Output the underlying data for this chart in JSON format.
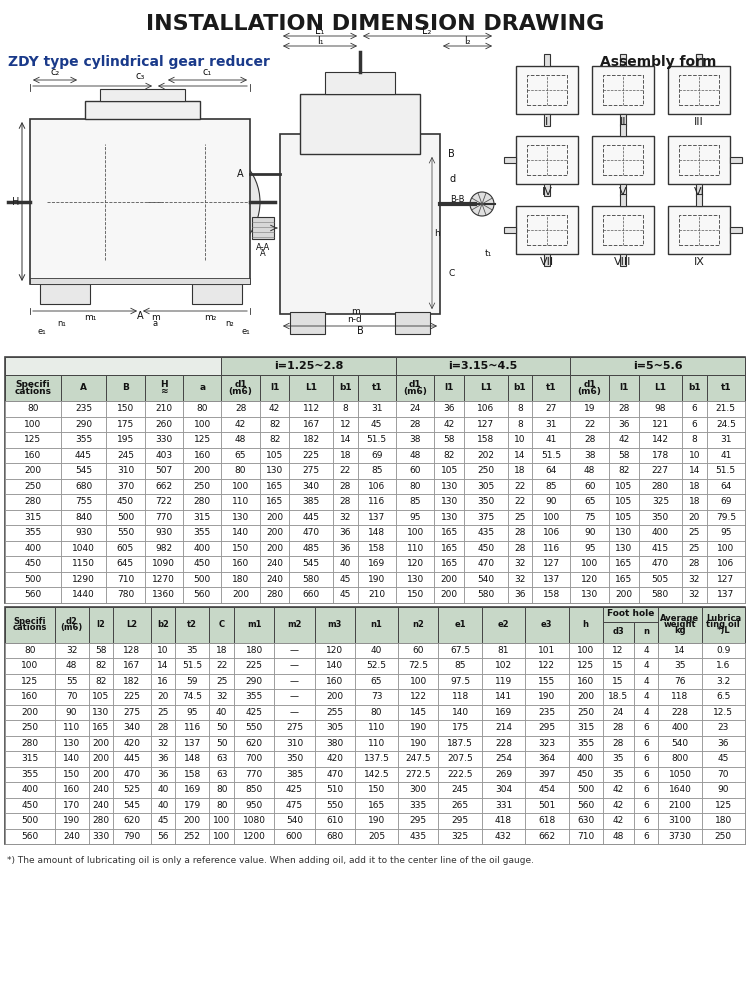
{
  "title": "INSTALLATION DIMENSION DRAWING",
  "subtitle": "ZDY type cylindrical gear reducer",
  "assembly_form_title": "Assembly form",
  "bg_color": "#ffffff",
  "subtitle_color": "#1a3a8a",
  "table_header_bg": "#c8d8c8",
  "table_border": "#555555",
  "table1_cols": [
    "Specifi\ncations",
    "A",
    "B",
    "H\n≈",
    "a",
    "d1\n(m6)",
    "l1",
    "L1",
    "b1",
    "t1",
    "d1\n(m6)",
    "l1",
    "L1",
    "b1",
    "t1",
    "d1\n(m6)",
    "l1",
    "L1",
    "b1",
    "t1"
  ],
  "table1_group_labels": [
    "",
    "i=1.25~2.8",
    "i=3.15~4.5",
    "i=5~5.6"
  ],
  "table1_group_spans": [
    [
      0,
      5
    ],
    [
      5,
      5
    ],
    [
      10,
      5
    ],
    [
      15,
      5
    ]
  ],
  "table1_data": [
    [
      "80",
      "235",
      "150",
      "210",
      "80",
      "28",
      "42",
      "112",
      "8",
      "31",
      "24",
      "36",
      "106",
      "8",
      "27",
      "19",
      "28",
      "98",
      "6",
      "21.5"
    ],
    [
      "100",
      "290",
      "175",
      "260",
      "100",
      "42",
      "82",
      "167",
      "12",
      "45",
      "28",
      "42",
      "127",
      "8",
      "31",
      "22",
      "36",
      "121",
      "6",
      "24.5"
    ],
    [
      "125",
      "355",
      "195",
      "330",
      "125",
      "48",
      "82",
      "182",
      "14",
      "51.5",
      "38",
      "58",
      "158",
      "10",
      "41",
      "28",
      "42",
      "142",
      "8",
      "31"
    ],
    [
      "160",
      "445",
      "245",
      "403",
      "160",
      "65",
      "105",
      "225",
      "18",
      "69",
      "48",
      "82",
      "202",
      "14",
      "51.5",
      "38",
      "58",
      "178",
      "10",
      "41"
    ],
    [
      "200",
      "545",
      "310",
      "507",
      "200",
      "80",
      "130",
      "275",
      "22",
      "85",
      "60",
      "105",
      "250",
      "18",
      "64",
      "48",
      "82",
      "227",
      "14",
      "51.5"
    ],
    [
      "250",
      "680",
      "370",
      "662",
      "250",
      "100",
      "165",
      "340",
      "28",
      "106",
      "80",
      "130",
      "305",
      "22",
      "85",
      "60",
      "105",
      "280",
      "18",
      "64"
    ],
    [
      "280",
      "755",
      "450",
      "722",
      "280",
      "110",
      "165",
      "385",
      "28",
      "116",
      "85",
      "130",
      "350",
      "22",
      "90",
      "65",
      "105",
      "325",
      "18",
      "69"
    ],
    [
      "315",
      "840",
      "500",
      "770",
      "315",
      "130",
      "200",
      "445",
      "32",
      "137",
      "95",
      "130",
      "375",
      "25",
      "100",
      "75",
      "105",
      "350",
      "20",
      "79.5"
    ],
    [
      "355",
      "930",
      "550",
      "930",
      "355",
      "140",
      "200",
      "470",
      "36",
      "148",
      "100",
      "165",
      "435",
      "28",
      "106",
      "90",
      "130",
      "400",
      "25",
      "95"
    ],
    [
      "400",
      "1040",
      "605",
      "982",
      "400",
      "150",
      "200",
      "485",
      "36",
      "158",
      "110",
      "165",
      "450",
      "28",
      "116",
      "95",
      "130",
      "415",
      "25",
      "100"
    ],
    [
      "450",
      "1150",
      "645",
      "1090",
      "450",
      "160",
      "240",
      "545",
      "40",
      "169",
      "120",
      "165",
      "470",
      "32",
      "127",
      "100",
      "165",
      "470",
      "28",
      "106"
    ],
    [
      "500",
      "1290",
      "710",
      "1270",
      "500",
      "180",
      "240",
      "580",
      "45",
      "190",
      "130",
      "200",
      "540",
      "32",
      "137",
      "120",
      "165",
      "505",
      "32",
      "127"
    ],
    [
      "560",
      "1440",
      "780",
      "1360",
      "560",
      "200",
      "280",
      "660",
      "45",
      "210",
      "150",
      "200",
      "580",
      "36",
      "158",
      "130",
      "200",
      "580",
      "32",
      "137"
    ]
  ],
  "table2_cols": [
    "Specifi\ncations",
    "d2\n(m6)",
    "l2",
    "L2",
    "b2",
    "t2",
    "C",
    "m1",
    "m2",
    "m3",
    "n1",
    "n2",
    "e1",
    "e2",
    "e3",
    "h",
    "d3",
    "n",
    "Average\nweight\nkg",
    "Lubrica\nting oil\n*)L"
  ],
  "table2_data": [
    [
      "80",
      "32",
      "58",
      "128",
      "10",
      "35",
      "18",
      "180",
      "—",
      "120",
      "40",
      "60",
      "67.5",
      "81",
      "101",
      "100",
      "12",
      "4",
      "14",
      "0.9"
    ],
    [
      "100",
      "48",
      "82",
      "167",
      "14",
      "51.5",
      "22",
      "225",
      "—",
      "140",
      "52.5",
      "72.5",
      "85",
      "102",
      "122",
      "125",
      "15",
      "4",
      "35",
      "1.6"
    ],
    [
      "125",
      "55",
      "82",
      "182",
      "16",
      "59",
      "25",
      "290",
      "—",
      "160",
      "65",
      "100",
      "97.5",
      "119",
      "155",
      "160",
      "15",
      "4",
      "76",
      "3.2"
    ],
    [
      "160",
      "70",
      "105",
      "225",
      "20",
      "74.5",
      "32",
      "355",
      "—",
      "200",
      "73",
      "122",
      "118",
      "141",
      "190",
      "200",
      "18.5",
      "4",
      "118",
      "6.5"
    ],
    [
      "200",
      "90",
      "130",
      "275",
      "25",
      "95",
      "40",
      "425",
      "—",
      "255",
      "80",
      "145",
      "140",
      "169",
      "235",
      "250",
      "24",
      "4",
      "228",
      "12.5"
    ],
    [
      "250",
      "110",
      "165",
      "340",
      "28",
      "116",
      "50",
      "550",
      "275",
      "305",
      "110",
      "190",
      "175",
      "214",
      "295",
      "315",
      "28",
      "6",
      "400",
      "23"
    ],
    [
      "280",
      "130",
      "200",
      "420",
      "32",
      "137",
      "50",
      "620",
      "310",
      "380",
      "110",
      "190",
      "187.5",
      "228",
      "323",
      "355",
      "28",
      "6",
      "540",
      "36"
    ],
    [
      "315",
      "140",
      "200",
      "445",
      "36",
      "148",
      "63",
      "700",
      "350",
      "420",
      "137.5",
      "247.5",
      "207.5",
      "254",
      "364",
      "400",
      "35",
      "6",
      "800",
      "45"
    ],
    [
      "355",
      "150",
      "200",
      "470",
      "36",
      "158",
      "63",
      "770",
      "385",
      "470",
      "142.5",
      "272.5",
      "222.5",
      "269",
      "397",
      "450",
      "35",
      "6",
      "1050",
      "70"
    ],
    [
      "400",
      "160",
      "240",
      "525",
      "40",
      "169",
      "80",
      "850",
      "425",
      "510",
      "150",
      "300",
      "245",
      "304",
      "454",
      "500",
      "42",
      "6",
      "1640",
      "90"
    ],
    [
      "450",
      "170",
      "240",
      "545",
      "40",
      "179",
      "80",
      "950",
      "475",
      "550",
      "165",
      "335",
      "265",
      "331",
      "501",
      "560",
      "42",
      "6",
      "2100",
      "125"
    ],
    [
      "500",
      "190",
      "280",
      "620",
      "45",
      "200",
      "100",
      "1080",
      "540",
      "610",
      "190",
      "295",
      "295",
      "418",
      "618",
      "630",
      "42",
      "6",
      "3100",
      "180"
    ],
    [
      "560",
      "240",
      "330",
      "790",
      "56",
      "252",
      "100",
      "1200",
      "600",
      "680",
      "205",
      "435",
      "325",
      "432",
      "662",
      "710",
      "48",
      "6",
      "3730",
      "250"
    ]
  ],
  "footnote": "*) The amount of lubricating oil is only a reference value. When adding oil, add it to the center line of the oil gauge.",
  "asm_labels": [
    "I",
    "II",
    "III",
    "IV",
    "V",
    "VI",
    "VII",
    "VIII",
    "IX"
  ]
}
